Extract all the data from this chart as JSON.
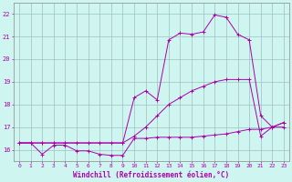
{
  "xlabel": "Windchill (Refroidissement éolien,°C)",
  "background_color": "#cef5f0",
  "grid_color": "#a0c0c0",
  "line_color": "#aa00aa",
  "xlim": [
    -0.5,
    23.5
  ],
  "ylim": [
    15.5,
    22.5
  ],
  "yticks": [
    16,
    17,
    18,
    19,
    20,
    21,
    22
  ],
  "xticks": [
    0,
    1,
    2,
    3,
    4,
    5,
    6,
    7,
    8,
    9,
    10,
    11,
    12,
    13,
    14,
    15,
    16,
    17,
    18,
    19,
    20,
    21,
    22,
    23
  ],
  "series": [
    {
      "x": [
        0,
        1,
        2,
        3,
        4,
        5,
        6,
        7,
        8,
        9,
        10,
        11,
        12,
        13,
        14,
        15,
        16,
        17,
        18,
        19,
        20,
        21,
        22,
        23
      ],
      "y": [
        16.3,
        16.3,
        15.8,
        16.2,
        16.2,
        15.95,
        15.95,
        15.8,
        15.75,
        15.75,
        16.5,
        16.5,
        16.55,
        16.55,
        16.55,
        16.55,
        16.6,
        16.65,
        16.7,
        16.8,
        16.9,
        16.9,
        17.0,
        17.0
      ]
    },
    {
      "x": [
        0,
        1,
        2,
        3,
        4,
        5,
        6,
        7,
        8,
        9,
        10,
        11,
        12,
        13,
        14,
        15,
        16,
        17,
        18,
        19,
        20,
        21,
        22,
        23
      ],
      "y": [
        16.3,
        16.3,
        16.3,
        16.3,
        16.3,
        16.3,
        16.3,
        16.3,
        16.3,
        16.3,
        16.6,
        17.0,
        17.5,
        18.0,
        18.3,
        18.6,
        18.8,
        19.0,
        19.1,
        19.1,
        19.1,
        16.6,
        17.0,
        17.2
      ]
    },
    {
      "x": [
        0,
        1,
        2,
        3,
        4,
        9,
        10,
        11,
        12,
        13,
        14,
        15,
        16,
        17,
        18,
        19,
        20,
        21,
        22,
        23
      ],
      "y": [
        16.3,
        16.3,
        16.3,
        16.3,
        16.3,
        16.3,
        18.3,
        18.6,
        18.2,
        20.85,
        21.15,
        21.1,
        21.2,
        21.95,
        21.85,
        21.1,
        20.85,
        17.5,
        17.0,
        17.2
      ]
    }
  ]
}
